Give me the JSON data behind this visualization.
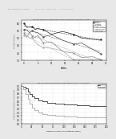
{
  "page_header": "Human supplementary formulation        Vol. 24, 2024   Pages 1 of 56    U.S. 4,444,444,444 (1)",
  "fig1_caption": "Fig. 3B. Serum K at study day 8 to 29 days after single-step (Protocol II B)",
  "fig2_caption": "Fig. 5a. Time of Sustained Serum Potassium in At At (Day/Etr.",
  "fig1_xlabel": "Weeks",
  "fig1_ylabel": "Serum K (mEq/L)",
  "fig1_ylim": [
    3.5,
    6.2
  ],
  "fig1_xlim": [
    -1,
    30
  ],
  "fig1_yticks": [
    3.5,
    4.0,
    4.5,
    5.0,
    5.5,
    6.0
  ],
  "fig2_xlabel": "Maximum Serum Area Potassium (mEq)",
  "fig2_ylabel": "Proportion remaining in K+ normal range",
  "fig2_ylim": [
    0,
    1.05
  ],
  "fig2_xlim": [
    0,
    200
  ],
  "fig2_yticks": [
    0.0,
    0.1,
    0.2,
    0.3,
    0.4,
    0.5,
    0.6,
    0.7,
    0.8,
    0.9,
    1.0
  ],
  "page_bg": "#e8e8e8",
  "chart_bg": "#ffffff",
  "line_colors_fig1": [
    "#222222",
    "#555555",
    "#888888",
    "#aaaaaa"
  ],
  "trend_colors_fig1": [
    "#333333",
    "#666666",
    "#999999",
    "#bbbbbb"
  ],
  "line_colors_fig2": [
    "#333333",
    "#aaaaaa"
  ],
  "legend_labels_fig1": [
    "Placebo",
    "Low Dose",
    "Std Dose",
    "High Dose",
    "Linear (Placebo)",
    "Linear (Low Dose)",
    "Linear (Std Dose)",
    "Linear (High)"
  ],
  "legend_labels_fig2": [
    "ZS",
    "Placebo"
  ]
}
